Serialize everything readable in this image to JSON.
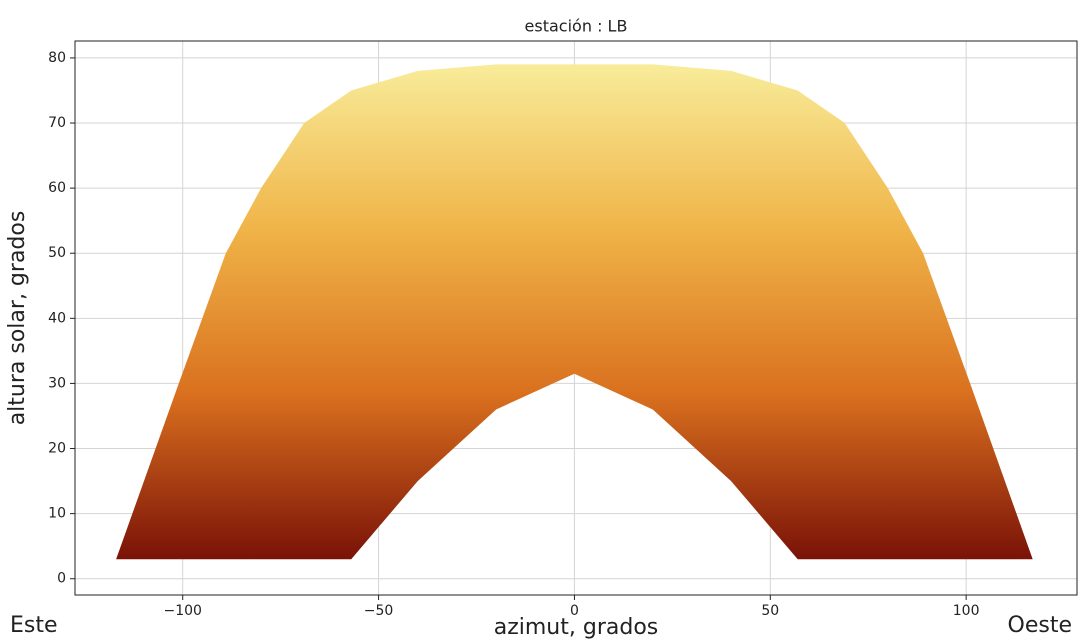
{
  "chart_data": {
    "type": "area",
    "title": "estación  : LB",
    "xlabel": "azimut, grados",
    "ylabel": "altura solar, grados",
    "annotations": [
      "Este",
      "Oeste"
    ],
    "x": [
      -117,
      -101,
      -89,
      -80,
      -69,
      -57,
      -40,
      -20,
      0,
      20,
      40,
      57,
      69,
      80,
      89,
      101,
      117
    ],
    "upper": [
      3,
      30,
      50,
      60,
      70,
      75,
      78,
      79,
      79,
      79,
      78,
      75,
      70,
      60,
      50,
      30,
      3
    ],
    "lower": [
      3,
      3,
      3,
      3,
      3,
      3,
      15,
      26,
      31.5,
      26,
      15,
      3,
      3,
      3,
      3,
      3,
      3
    ],
    "colors": [
      "#f8ec9a",
      "#f0b448",
      "#d9701e",
      "#7a1208"
    ],
    "xlim": [
      -127.5,
      128.3
    ],
    "ylim": [
      -2.5,
      82.6
    ],
    "xticks": [
      {
        "value": -100,
        "label": "−100"
      },
      {
        "value": -50,
        "label": "−50"
      },
      0,
      50,
      100
    ],
    "yticks": [
      0,
      10,
      20,
      30,
      40,
      50,
      60,
      70,
      80
    ],
    "grid": true
  }
}
